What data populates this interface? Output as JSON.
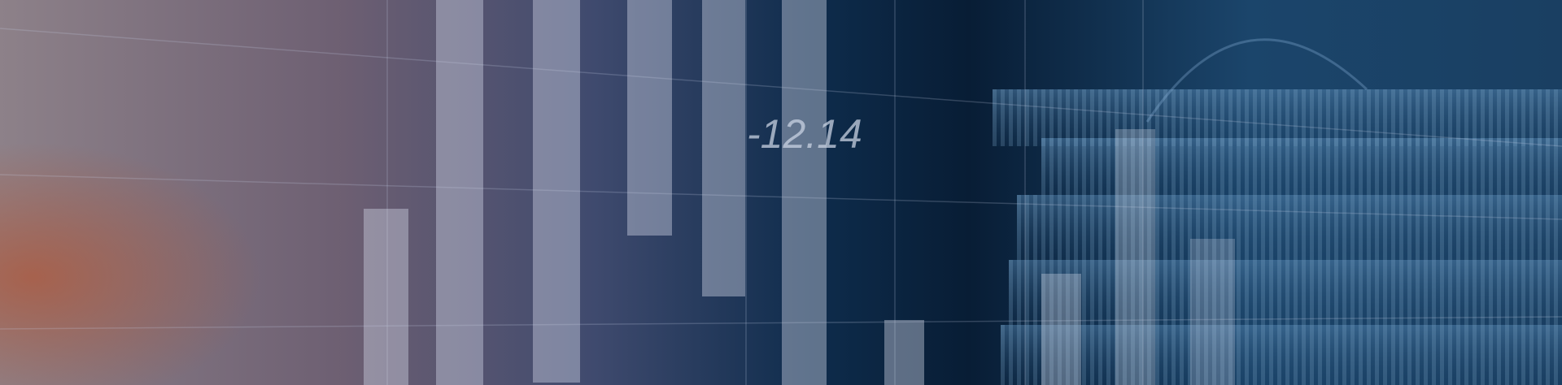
{
  "banner": {
    "overlay_text": "-12.14"
  }
}
